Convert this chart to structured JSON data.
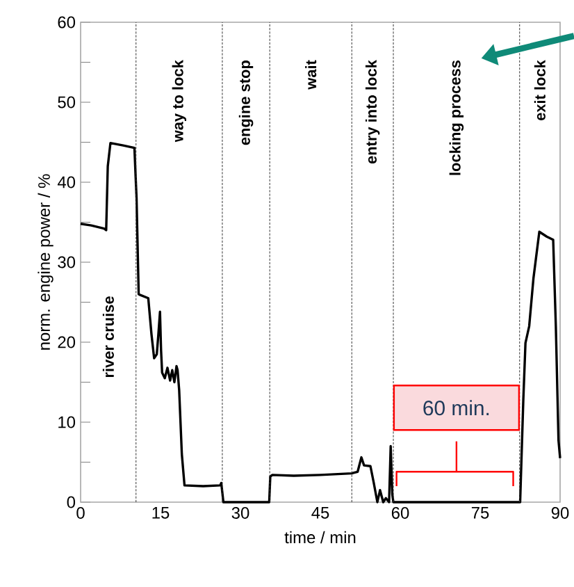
{
  "chart_data": {
    "type": "line",
    "xlabel": "time / min",
    "ylabel": "norm. engine power / %",
    "xlim": [
      0,
      90
    ],
    "xticks": [
      0,
      15,
      30,
      45,
      60,
      75,
      90
    ],
    "ylim": [
      0,
      60
    ],
    "yticks": [
      0,
      {
        "value": 5,
        "label": null
      },
      10,
      {
        "value": 15,
        "label": null
      },
      20,
      {
        "value": 25,
        "label": null
      },
      30,
      {
        "value": 35,
        "label": null
      },
      40,
      {
        "value": 45,
        "label": null
      },
      50,
      {
        "value": 55,
        "label": null
      },
      60
    ],
    "series": [
      {
        "color": "#000000",
        "marker": "none",
        "line_style": "solid",
        "x": [
          0,
          2,
          4.4,
          4.8,
          5.1,
          5.6,
          8,
          10.1,
          10.5,
          10.9,
          11.2,
          12.7,
          13.3,
          13.8,
          14.3,
          14.6,
          14.9,
          15.1,
          15.3,
          15.8,
          16.3,
          16.8,
          17.2,
          17.6,
          18.0,
          18.2,
          18.5,
          19.0,
          19.5,
          23,
          26.2,
          26.4,
          26.8,
          30,
          35.4,
          35.6,
          36,
          40,
          45,
          50.9,
          52.0,
          52.7,
          53.2,
          54.4,
          55.0,
          55.7,
          56.2,
          56.8,
          57.3,
          57.9,
          58.2,
          58.5,
          58.7,
          65,
          75,
          82.5,
          83.1,
          83.5,
          84.2,
          85.0,
          86.1,
          87.5,
          88.7,
          89.2,
          89.7,
          90
        ],
        "values": [
          34.8,
          34.6,
          34.2,
          34.0,
          42,
          44.9,
          44.6,
          44.3,
          38,
          26.0,
          25.9,
          25.5,
          21,
          18.0,
          18.5,
          21,
          23.8,
          19,
          16.2,
          15.5,
          16.8,
          15.2,
          16.5,
          15,
          17,
          16.5,
          14,
          6,
          2.1,
          2.0,
          2.1,
          2.4,
          0,
          0,
          0,
          3.2,
          3.4,
          3.3,
          3.4,
          3.6,
          3.8,
          5.6,
          4.6,
          4.5,
          2.5,
          0,
          1.5,
          0,
          0.5,
          0,
          7.0,
          1,
          0,
          0,
          0,
          0,
          12.9,
          19.9,
          22,
          28,
          33.8,
          33.2,
          32.8,
          22,
          7.7,
          5.5
        ]
      }
    ],
    "ref_lines": [
      {
        "axis": "x",
        "value": 10.4,
        "color": "#333333",
        "line_style": "dashed"
      },
      {
        "axis": "x",
        "value": 26.6,
        "color": "#333333",
        "line_style": "dashed"
      },
      {
        "axis": "x",
        "value": 35.5,
        "color": "#333333",
        "line_style": "dashed"
      },
      {
        "axis": "x",
        "value": 50.9,
        "color": "#333333",
        "line_style": "dashed"
      },
      {
        "axis": "x",
        "value": 58.7,
        "color": "#333333",
        "line_style": "dashed"
      },
      {
        "axis": "x",
        "value": 82.4,
        "color": "#333333",
        "line_style": "dashed"
      }
    ],
    "annotations": [
      "river cruise",
      "way to lock",
      "engine stop",
      "wait",
      "entry into lock",
      "locking process",
      "exit lock",
      "60 min."
    ]
  }
}
